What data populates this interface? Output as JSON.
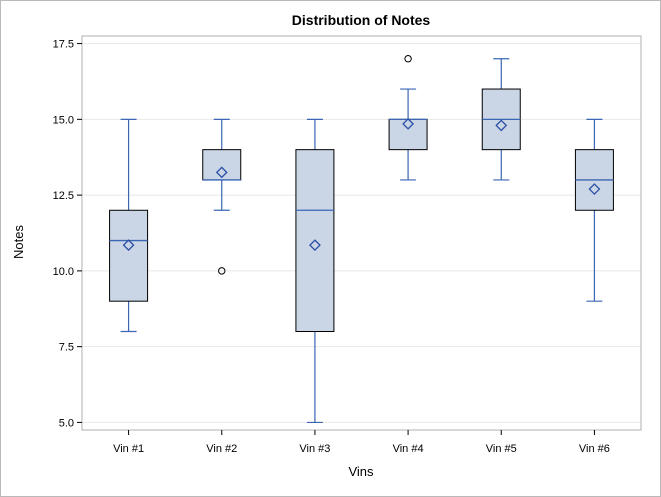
{
  "chart_data": {
    "type": "box",
    "title": "Distribution of Notes",
    "xlabel": "Vins",
    "ylabel": "Notes",
    "ylim": [
      4.75,
      17.75
    ],
    "yticks": [
      "5.0",
      "7.5",
      "10.0",
      "12.5",
      "15.0",
      "17.5"
    ],
    "grid": true,
    "categories": [
      "Vin #1",
      "Vin #2",
      "Vin #3",
      "Vin #4",
      "Vin #5",
      "Vin #6"
    ],
    "boxes": [
      {
        "whisker_low": 8,
        "q1": 9,
        "median": 11,
        "q3": 12,
        "whisker_high": 15,
        "mean": 10.85,
        "outliers": []
      },
      {
        "whisker_low": 12,
        "q1": 13,
        "median": 13,
        "q3": 14,
        "whisker_high": 15,
        "mean": 13.25,
        "outliers": [
          10
        ]
      },
      {
        "whisker_low": 5,
        "q1": 8,
        "median": 12,
        "q3": 14,
        "whisker_high": 15,
        "mean": 10.85,
        "outliers": []
      },
      {
        "whisker_low": 13,
        "q1": 14,
        "median": 15,
        "q3": 15,
        "whisker_high": 16,
        "mean": 14.85,
        "outliers": [
          17
        ]
      },
      {
        "whisker_low": 13,
        "q1": 14,
        "median": 15,
        "q3": 16,
        "whisker_high": 17,
        "mean": 14.8,
        "outliers": []
      },
      {
        "whisker_low": 9,
        "q1": 12,
        "median": 13,
        "q3": 14,
        "whisker_high": 15,
        "mean": 12.7,
        "outliers": []
      }
    ],
    "colors": {
      "box_fill": "#cad5e5",
      "box_outline": "#000000",
      "whisker": "#3a66b4",
      "median": "#3a66b4",
      "mean_marker": "#2b4fa6",
      "outlier": "#000000",
      "grid": "#e8e8e8",
      "plot_border": "#b0b0b0"
    }
  }
}
